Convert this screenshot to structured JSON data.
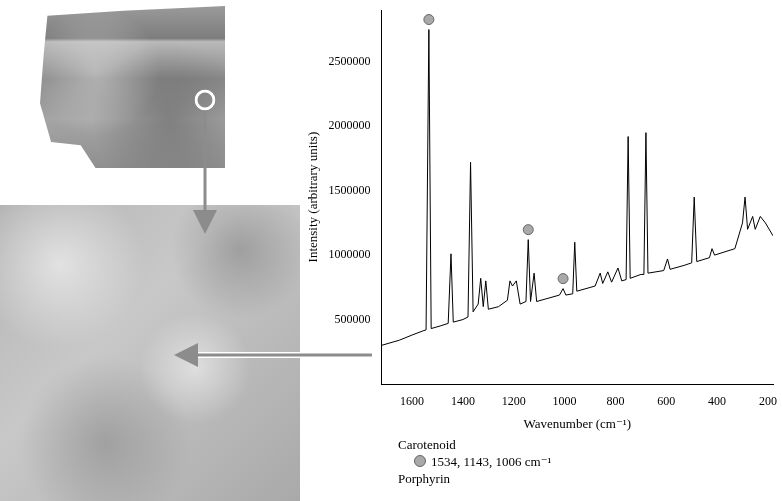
{
  "chart_data": {
    "type": "line",
    "xlabel": "Wavenumber (cm⁻¹)",
    "ylabel": "Intensity (arbitrary units)",
    "x": [
      1720,
      1650,
      1600,
      1560,
      1545,
      1534,
      1525,
      1490,
      1458,
      1447,
      1438,
      1400,
      1380,
      1370,
      1360,
      1340,
      1330,
      1320,
      1310,
      1300,
      1260,
      1225,
      1215,
      1205,
      1190,
      1175,
      1152,
      1143,
      1134,
      1120,
      1110,
      1020,
      1006,
      995,
      968,
      960,
      952,
      880,
      860,
      850,
      830,
      815,
      790,
      775,
      758,
      750,
      742,
      700,
      688,
      680,
      672,
      610,
      595,
      585,
      530,
      500,
      490,
      480,
      430,
      420,
      410,
      330,
      300,
      290,
      280,
      260,
      250,
      230,
      210,
      180
    ],
    "values": [
      300000,
      340000,
      380000,
      410000,
      420000,
      2750000,
      430000,
      450000,
      470000,
      1010000,
      480000,
      500000,
      520000,
      1720000,
      560000,
      620000,
      820000,
      600000,
      800000,
      580000,
      600000,
      650000,
      800000,
      760000,
      800000,
      620000,
      640000,
      1120000,
      640000,
      860000,
      640000,
      690000,
      740000,
      690000,
      700000,
      1100000,
      720000,
      760000,
      860000,
      780000,
      870000,
      790000,
      900000,
      800000,
      810000,
      1920000,
      820000,
      850000,
      850000,
      1950000,
      860000,
      880000,
      970000,
      890000,
      920000,
      940000,
      1450000,
      950000,
      980000,
      1050000,
      1000000,
      1050000,
      1250000,
      1450000,
      1200000,
      1300000,
      1200000,
      1300000,
      1250000,
      1150000
    ],
    "color": "#000000",
    "xlim": [
      1720,
      180
    ],
    "xticks": [
      1600,
      1400,
      1200,
      1000,
      800,
      600,
      400,
      200
    ],
    "ylim": [
      0,
      2900000
    ],
    "yticks": [
      500000,
      1000000,
      1500000,
      2000000,
      2500000
    ],
    "grid": false,
    "legend": "bottom",
    "markers": {
      "x": [
        1534,
        1143,
        1006
      ],
      "color": "#a9a9a9",
      "marker": "circle"
    },
    "key": [
      {
        "name": "Carotenoid",
        "text": "1534, 1143, 1006 cm⁻¹",
        "marker": "circle"
      },
      {
        "name": "Porphyrin"
      }
    ]
  }
}
